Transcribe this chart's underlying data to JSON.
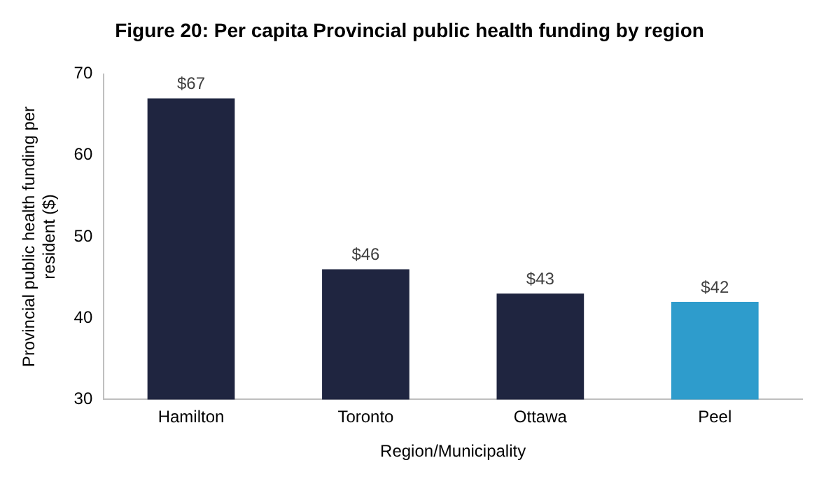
{
  "chart_data": {
    "type": "bar",
    "title": "Figure 20: Per capita Provincial public health funding by region",
    "xlabel": "Region/Municipality",
    "ylabel": "Provincial public health funding per resident ($)",
    "categories": [
      "Hamilton",
      "Toronto",
      "Ottawa",
      "Peel"
    ],
    "values": [
      67,
      46,
      43,
      42
    ],
    "colors": [
      "#1f2540",
      "#1f2540",
      "#1f2540",
      "#2e9ccc"
    ],
    "value_labels": [
      "$67",
      "$46",
      "$43",
      "$42"
    ],
    "ylim": [
      30,
      70
    ],
    "yticks": [
      30,
      40,
      50,
      60,
      70
    ],
    "grid": false,
    "legend": false
  }
}
